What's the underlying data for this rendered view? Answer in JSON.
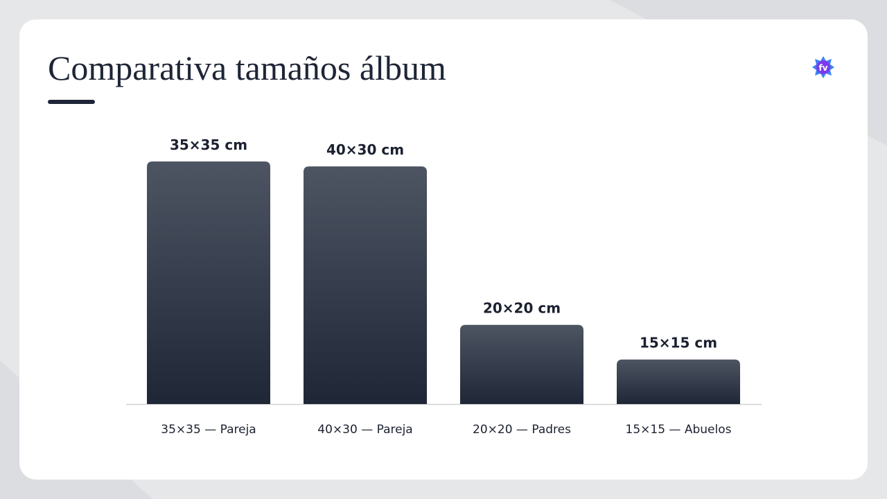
{
  "chart_data": {
    "type": "bar",
    "title": "Comparativa tamaños álbum",
    "categories": [
      "35×35 — Pareja",
      "40×30 — Pareja",
      "20×20 — Padres",
      "15×15 — Abuelos"
    ],
    "values": [
      1225,
      1200,
      400,
      225
    ],
    "value_labels": [
      "35×35 cm",
      "40×30 cm",
      "20×20 cm",
      "15×15 cm"
    ],
    "color": "#1f2737"
  }
}
